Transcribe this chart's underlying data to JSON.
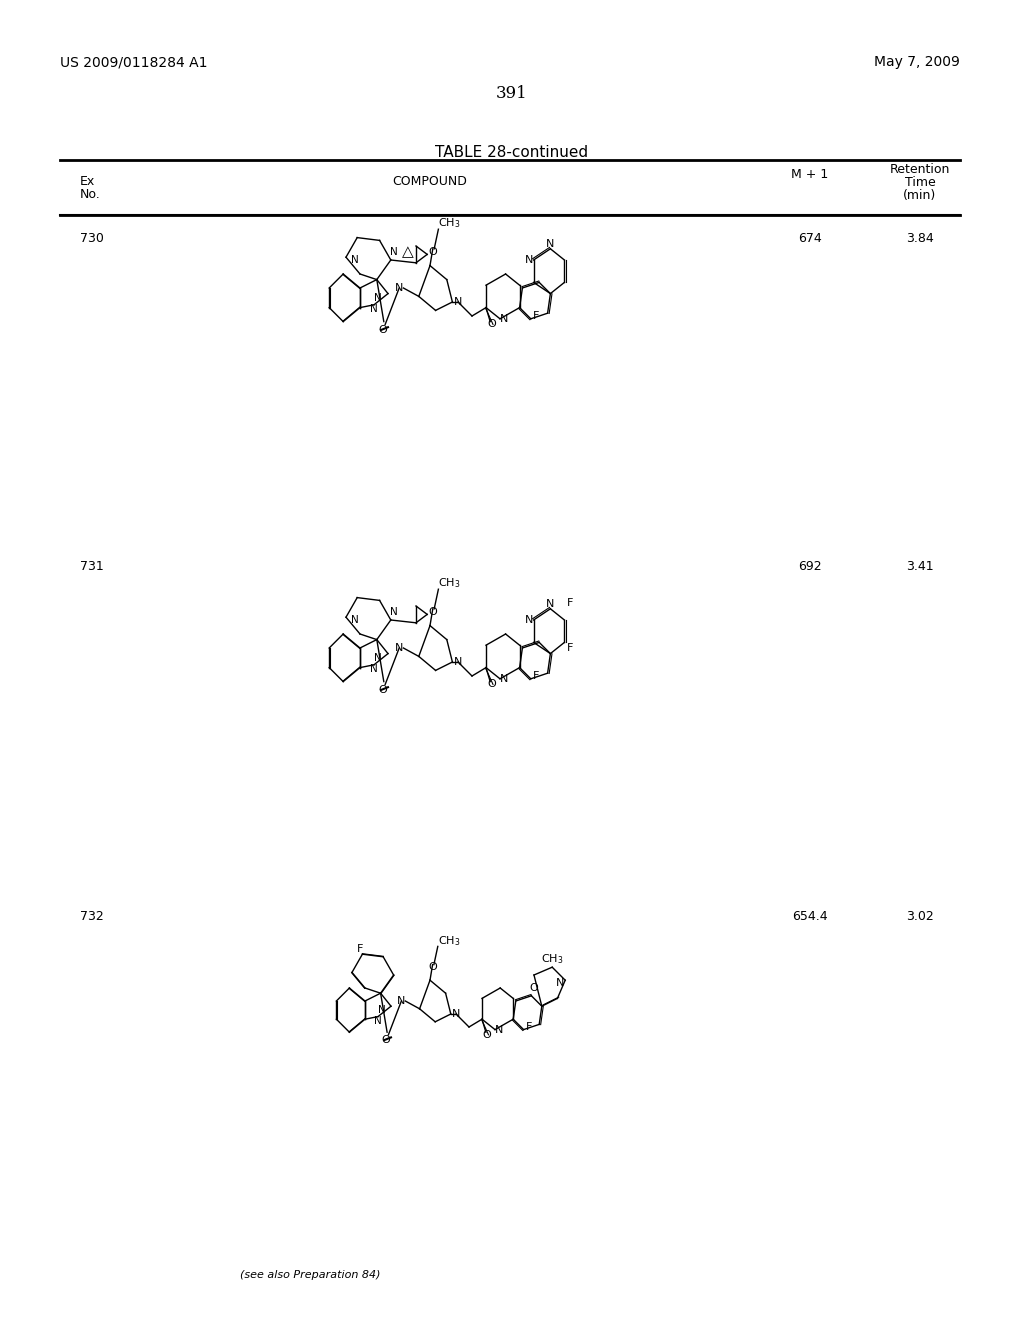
{
  "page_number": "391",
  "patent_number": "US 2009/0118284 A1",
  "patent_date": "May 7, 2009",
  "table_title": "TABLE 28-continued",
  "col_headers": [
    "Ex\nNo.",
    "COMPOUND",
    "M + 1",
    "Retention\nTime\n(min)"
  ],
  "background_color": "#ffffff",
  "text_color": "#000000",
  "rows": [
    {
      "ex_no": "730",
      "m1": "674",
      "ret_time": "3.84"
    },
    {
      "ex_no": "731",
      "m1": "692",
      "ret_time": "3.41"
    },
    {
      "ex_no": "732",
      "m1": "654.4",
      "ret_time": "3.02"
    }
  ],
  "note_732": "(see also Preparation 84)"
}
